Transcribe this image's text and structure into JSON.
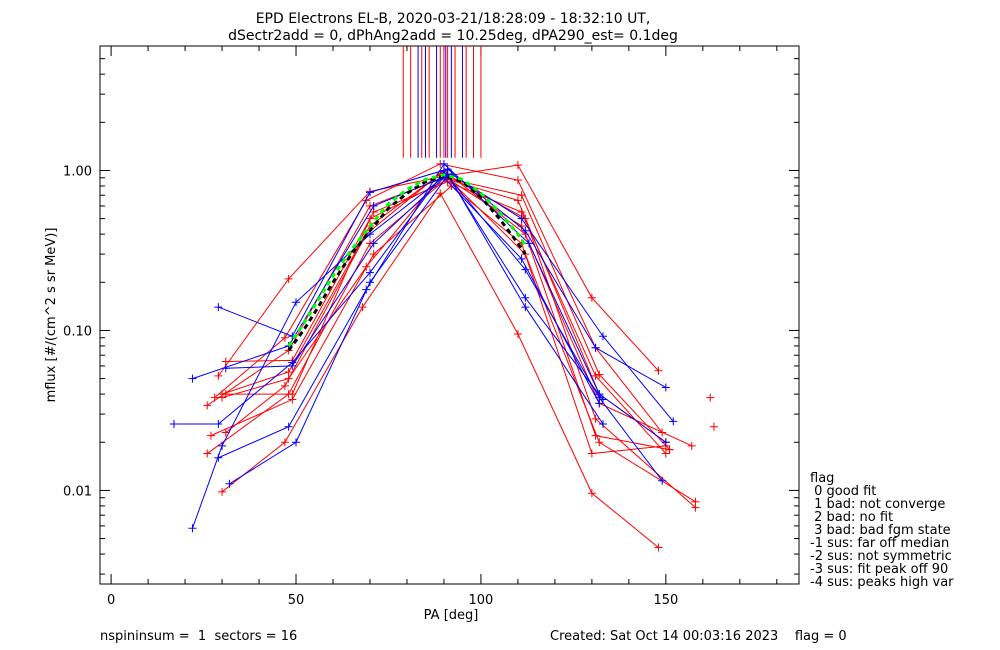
{
  "title_line1": "EPD Electrons EL-B, 2020-03-21/18:28:09 - 18:32:10 UT,",
  "title_line2": "dSectr2add = 0, dPhAng2add = 10.25deg, dPA290_est=    0.1deg",
  "footer_left": "nspininsum =  1  sectors = 16",
  "footer_right": "Created: Sat Oct 14 00:03:16 2023    flag = 0",
  "legend": {
    "title": "flag",
    "items": [
      " 0 good fit",
      " 1 bad: not converge",
      " 2 bad: no fit",
      " 3 bad: bad fgm state",
      "-1 sus: far off median",
      "-2 sus: not symmetric",
      "-3 sus: fit peak off 90",
      "-4 sus: peaks high var"
    ]
  },
  "colors": {
    "red": "#ff0000",
    "blue": "#0000ff",
    "black": "#000000",
    "green": "#00ff00"
  },
  "chart_data": {
    "type": "line",
    "xlabel": "PA [deg]",
    "ylabel": "mflux [#/(cm^2 s sr MeV)]",
    "xlim": [
      -3,
      186
    ],
    "ylim": [
      0.0026,
      6
    ],
    "yscale": "log",
    "x_ticks": [
      0,
      50,
      100,
      150
    ],
    "y_ticks": [
      {
        "v": 0.01,
        "label": "0.01"
      },
      {
        "v": 0.1,
        "label": "0.10"
      },
      {
        "v": 1.0,
        "label": "1.00"
      }
    ],
    "vertical_markers": {
      "y_range": [
        1.2,
        6
      ],
      "red": [
        79,
        81,
        84,
        86,
        89,
        90,
        91,
        93,
        96,
        98,
        100
      ],
      "blue": [
        83,
        85,
        88,
        90.5,
        92,
        95
      ]
    },
    "series": [
      {
        "color": "red",
        "x": [
          29,
          48,
          70,
          90,
          110,
          130,
          148
        ],
        "y": [
          0.052,
          0.21,
          0.74,
          0.92,
          1.08,
          0.16,
          0.056
        ]
      },
      {
        "color": "red",
        "x": [
          28,
          47,
          69,
          89,
          110,
          131,
          149
        ],
        "y": [
          0.038,
          0.09,
          0.65,
          1.1,
          0.87,
          0.078,
          0.023
        ]
      },
      {
        "color": "red",
        "x": [
          26,
          48,
          70,
          90,
          111,
          132,
          151
        ],
        "y": [
          0.034,
          0.075,
          0.6,
          0.9,
          0.7,
          0.053,
          0.018
        ]
      },
      {
        "color": "red",
        "x": [
          31,
          49,
          71,
          91,
          111,
          131,
          150
        ],
        "y": [
          0.064,
          0.065,
          0.55,
          0.85,
          0.55,
          0.052,
          0.017
        ]
      },
      {
        "color": "red",
        "x": [
          30,
          48,
          70,
          89,
          111,
          132,
          157
        ],
        "y": [
          0.04,
          0.055,
          0.45,
          0.95,
          0.45,
          0.035,
          0.019
        ]
      },
      {
        "color": "red",
        "x": [
          31,
          47,
          69,
          90,
          112,
          131,
          151
        ],
        "y": [
          0.023,
          0.045,
          0.4,
          1.0,
          0.4,
          0.022,
          0.018
        ]
      },
      {
        "color": "red",
        "x": [
          26,
          48,
          70,
          91,
          112,
          132,
          158
        ],
        "y": [
          0.017,
          0.04,
          0.35,
          0.9,
          0.3,
          0.02,
          0.0085
        ]
      },
      {
        "color": "red",
        "x": [
          30,
          47,
          68,
          89,
          110,
          130,
          148
        ],
        "y": [
          0.0098,
          0.02,
          0.14,
          0.72,
          0.095,
          0.0096,
          0.0044
        ]
      },
      {
        "color": "red",
        "x": [
          27,
          49,
          71,
          92,
          111,
          130,
          150
        ],
        "y": [
          0.022,
          0.037,
          0.3,
          0.8,
          0.35,
          0.017,
          0.019
        ]
      },
      {
        "color": "red",
        "x": [
          30,
          48,
          69,
          90,
          112,
          131,
          158
        ],
        "y": [
          0.038,
          0.05,
          0.25,
          0.96,
          0.5,
          0.028,
          0.0078
        ]
      },
      {
        "color": "red",
        "x": [
          31,
          49,
          70,
          91,
          110,
          132,
          150
        ],
        "y": [
          0.04,
          0.04,
          0.5,
          0.88,
          0.65,
          0.04,
          0.02
        ]
      },
      {
        "color": "blue",
        "x": [
          29,
          49,
          70,
          91,
          112,
          131,
          150
        ],
        "y": [
          0.14,
          0.092,
          0.73,
          1.02,
          0.42,
          0.078,
          0.044
        ]
      },
      {
        "color": "blue",
        "x": [
          22,
          48,
          71,
          92,
          111,
          133,
          152
        ],
        "y": [
          0.05,
          0.08,
          0.6,
          0.95,
          0.5,
          0.092,
          0.027
        ]
      },
      {
        "color": "blue",
        "x": [
          17,
          29,
          49,
          70,
          90,
          112,
          132,
          149
        ],
        "y": [
          0.026,
          0.026,
          0.063,
          0.23,
          0.98,
          0.24,
          0.038,
          0.0115
        ]
      },
      {
        "color": "blue",
        "x": [
          22,
          30,
          50,
          70,
          91,
          112,
          133
        ],
        "y": [
          0.0058,
          0.019,
          0.15,
          0.4,
          0.95,
          0.14,
          0.026
        ]
      },
      {
        "color": "blue",
        "x": [
          29,
          48,
          69,
          90,
          113,
          132,
          150
        ],
        "y": [
          0.016,
          0.025,
          0.18,
          1.1,
          0.35,
          0.04,
          0.02
        ]
      },
      {
        "color": "blue",
        "x": [
          32,
          50,
          70,
          91,
          112,
          133
        ],
        "y": [
          0.011,
          0.02,
          0.2,
          0.93,
          0.16,
          0.037
        ]
      },
      {
        "color": "blue",
        "x": [
          31,
          49,
          71,
          90,
          111,
          132
        ],
        "y": [
          0.058,
          0.06,
          0.35,
          0.9,
          0.28,
          0.035
        ]
      },
      {
        "color": "red",
        "x": [
          162,
          163
        ],
        "y": [
          0.038,
          0.025
        ],
        "markers_only": true
      },
      {
        "color": "black",
        "x": [
          48,
          52,
          56,
          60,
          65,
          70,
          75,
          80,
          85,
          90,
          95,
          100,
          105,
          110,
          112
        ],
        "y": [
          0.075,
          0.1,
          0.14,
          0.2,
          0.3,
          0.42,
          0.58,
          0.72,
          0.85,
          0.93,
          0.85,
          0.68,
          0.5,
          0.35,
          0.3
        ],
        "dashed": true,
        "width": 3
      },
      {
        "color": "green",
        "x": [
          48,
          52,
          56,
          60,
          65,
          70,
          75,
          80,
          85,
          90,
          95,
          100,
          105,
          110,
          112
        ],
        "y": [
          0.08,
          0.11,
          0.155,
          0.22,
          0.32,
          0.45,
          0.62,
          0.76,
          0.88,
          0.94,
          0.88,
          0.72,
          0.55,
          0.4,
          0.34
        ],
        "dashed": true,
        "width": 3
      }
    ]
  }
}
